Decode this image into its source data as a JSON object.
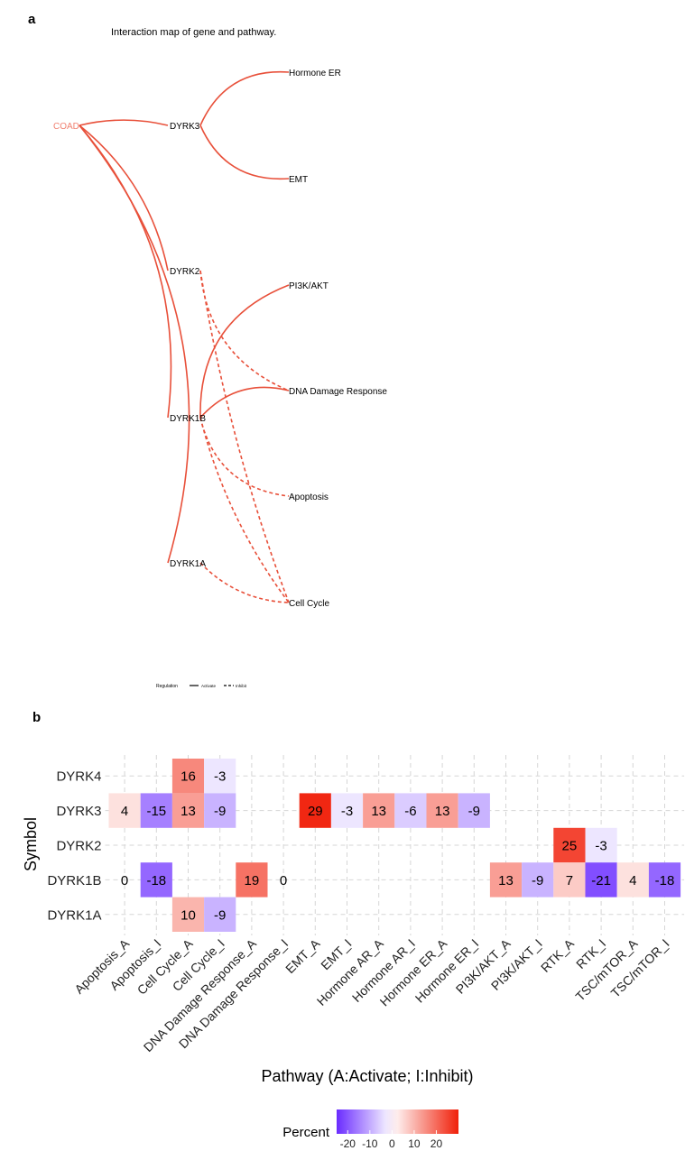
{
  "panel_a": {
    "letter": "a",
    "title": "Interaction map of gene and pathway.",
    "source_node": {
      "label": "COAD",
      "color": "#f08070"
    },
    "gene_nodes": [
      "DYRK3",
      "DYRK2",
      "DYRK1B",
      "DYRK1A"
    ],
    "pathway_nodes": [
      "Hormone ER",
      "EMT",
      "PI3K/AKT",
      "DNA Damage Response",
      "Apoptosis",
      "Cell Cycle"
    ],
    "edge_color": "#e8503a",
    "source_edges": [
      {
        "from": "COAD",
        "to": "DYRK3"
      },
      {
        "from": "COAD",
        "to": "DYRK2"
      },
      {
        "from": "COAD",
        "to": "DYRK1B"
      },
      {
        "from": "COAD",
        "to": "DYRK1A"
      }
    ],
    "pathway_edges": [
      {
        "from": "DYRK3",
        "to": "Hormone ER",
        "type": "Activate"
      },
      {
        "from": "DYRK3",
        "to": "EMT",
        "type": "Activate"
      },
      {
        "from": "DYRK2",
        "to": "DNA Damage Response",
        "type": "Inhibit"
      },
      {
        "from": "DYRK2",
        "to": "Cell Cycle",
        "type": "Inhibit"
      },
      {
        "from": "DYRK1B",
        "to": "PI3K/AKT",
        "type": "Activate"
      },
      {
        "from": "DYRK1B",
        "to": "DNA Damage Response",
        "type": "Activate"
      },
      {
        "from": "DYRK1B",
        "to": "Apoptosis",
        "type": "Inhibit"
      },
      {
        "from": "DYRK1B",
        "to": "Cell Cycle",
        "type": "Inhibit"
      },
      {
        "from": "DYRK1A",
        "to": "Cell Cycle",
        "type": "Inhibit"
      }
    ],
    "legend": {
      "title": "Regulation",
      "solid_label": "Activate",
      "dashed_label": "Inhibit"
    }
  },
  "panel_b": {
    "letter": "b"
  },
  "chart_data": {
    "type": "heatmap",
    "xlabel": "Pathway (A:Activate; I:Inhibit)",
    "ylabel": "Symbol",
    "x_categories": [
      "Apoptosis_A",
      "Apoptosis_I",
      "Cell Cycle_A",
      "Cell Cycle_I",
      "DNA Damage Response_A",
      "DNA Damage Response_I",
      "EMT_A",
      "EMT_I",
      "Hormone AR_A",
      "Hormone AR_I",
      "Hormone ER_A",
      "Hormone ER_I",
      "PI3K/AKT_A",
      "PI3K/AKT_I",
      "RTK_A",
      "RTK_I",
      "TSC/mTOR_A",
      "TSC/mTOR_I"
    ],
    "y_categories": [
      "DYRK4",
      "DYRK3",
      "DYRK2",
      "DYRK1B",
      "DYRK1A"
    ],
    "cells": [
      {
        "symbol": "DYRK4",
        "pathway": "Cell Cycle_A",
        "value": 16
      },
      {
        "symbol": "DYRK4",
        "pathway": "Cell Cycle_I",
        "value": -3
      },
      {
        "symbol": "DYRK3",
        "pathway": "Apoptosis_A",
        "value": 4
      },
      {
        "symbol": "DYRK3",
        "pathway": "Apoptosis_I",
        "value": -15
      },
      {
        "symbol": "DYRK3",
        "pathway": "Cell Cycle_A",
        "value": 13
      },
      {
        "symbol": "DYRK3",
        "pathway": "Cell Cycle_I",
        "value": -9
      },
      {
        "symbol": "DYRK3",
        "pathway": "EMT_A",
        "value": 29
      },
      {
        "symbol": "DYRK3",
        "pathway": "EMT_I",
        "value": -3
      },
      {
        "symbol": "DYRK3",
        "pathway": "Hormone AR_A",
        "value": 13
      },
      {
        "symbol": "DYRK3",
        "pathway": "Hormone AR_I",
        "value": -6
      },
      {
        "symbol": "DYRK3",
        "pathway": "Hormone ER_A",
        "value": 13
      },
      {
        "symbol": "DYRK3",
        "pathway": "Hormone ER_I",
        "value": -9
      },
      {
        "symbol": "DYRK2",
        "pathway": "RTK_A",
        "value": 25
      },
      {
        "symbol": "DYRK2",
        "pathway": "RTK_I",
        "value": -3
      },
      {
        "symbol": "DYRK1B",
        "pathway": "Apoptosis_A",
        "value": 0
      },
      {
        "symbol": "DYRK1B",
        "pathway": "Apoptosis_I",
        "value": -18
      },
      {
        "symbol": "DYRK1B",
        "pathway": "DNA Damage Response_A",
        "value": 19
      },
      {
        "symbol": "DYRK1B",
        "pathway": "DNA Damage Response_I",
        "value": 0
      },
      {
        "symbol": "DYRK1B",
        "pathway": "PI3K/AKT_A",
        "value": 13
      },
      {
        "symbol": "DYRK1B",
        "pathway": "PI3K/AKT_I",
        "value": -9
      },
      {
        "symbol": "DYRK1B",
        "pathway": "RTK_A",
        "value": 7
      },
      {
        "symbol": "DYRK1B",
        "pathway": "RTK_I",
        "value": -21
      },
      {
        "symbol": "DYRK1B",
        "pathway": "TSC/mTOR_A",
        "value": 4
      },
      {
        "symbol": "DYRK1B",
        "pathway": "TSC/mTOR_I",
        "value": -18
      },
      {
        "symbol": "DYRK1A",
        "pathway": "Cell Cycle_A",
        "value": 10
      },
      {
        "symbol": "DYRK1A",
        "pathway": "Cell Cycle_I",
        "value": -9
      }
    ],
    "color_scale": {
      "low": "#6a2cff",
      "mid": "#ffffff",
      "high": "#f0200a",
      "limits": [
        -25,
        30
      ]
    },
    "legend": {
      "title": "Percent",
      "ticks": [
        -20,
        -10,
        0,
        10,
        20
      ]
    },
    "grid": "dashed"
  }
}
